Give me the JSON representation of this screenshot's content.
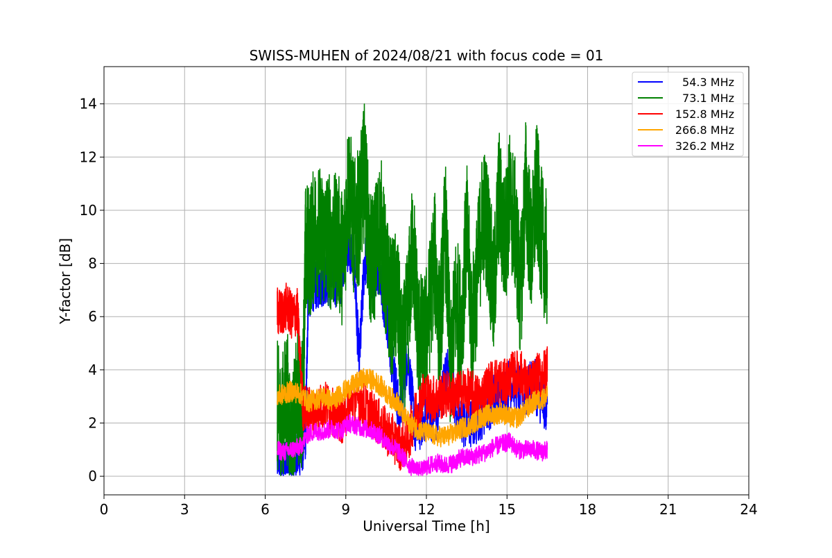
{
  "chart_data": {
    "type": "line",
    "title": "SWISS-MUHEN of 2024/08/21 with focus code = 01",
    "xlabel": "Universal Time [h]",
    "ylabel": "Y-factor [dB]",
    "xlim": [
      0,
      24
    ],
    "ylim": [
      -0.7,
      15.4
    ],
    "xticks": [
      0,
      3,
      6,
      9,
      12,
      15,
      18,
      21,
      24
    ],
    "yticks": [
      0,
      2,
      4,
      6,
      8,
      10,
      12,
      14
    ],
    "grid": true,
    "legend_position": "top-right",
    "series": [
      {
        "name": "54.3 MHz",
        "color": "#0000ff",
        "x": [
          6.45,
          6.7,
          6.9,
          7.1,
          7.3,
          7.5,
          7.6,
          7.8,
          8.0,
          8.2,
          8.5,
          8.8,
          9.0,
          9.3,
          9.5,
          9.7,
          9.9,
          10.2,
          10.5,
          10.8,
          11.0,
          11.3,
          11.6,
          12.0,
          12.4,
          12.8,
          13.2,
          13.6,
          14.0,
          14.4,
          14.8,
          15.2,
          15.6,
          16.0,
          16.3,
          16.5
        ],
        "y": [
          0.5,
          0.4,
          0.3,
          0.6,
          0.9,
          1.5,
          6.8,
          7.2,
          7.3,
          7.4,
          7.3,
          7.4,
          8.8,
          8.1,
          4.2,
          8.2,
          7.6,
          7.8,
          6.2,
          3.8,
          2.2,
          4.6,
          1.6,
          2.4,
          2.2,
          4.1,
          2.1,
          1.9,
          2.3,
          2.8,
          3.2,
          3.6,
          3.0,
          3.5,
          2.8,
          2.7
        ]
      },
      {
        "name": "73.1 MHz",
        "color": "#008000",
        "x": [
          6.45,
          6.6,
          6.8,
          7.0,
          7.2,
          7.4,
          7.5,
          7.7,
          7.9,
          8.1,
          8.3,
          8.5,
          8.7,
          8.9,
          9.1,
          9.3,
          9.5,
          9.7,
          9.9,
          10.1,
          10.3,
          10.5,
          10.7,
          10.9,
          11.1,
          11.3,
          11.5,
          11.7,
          11.9,
          12.1,
          12.3,
          12.5,
          12.7,
          12.9,
          13.1,
          13.3,
          13.5,
          13.7,
          13.9,
          14.1,
          14.3,
          14.5,
          14.7,
          14.9,
          15.1,
          15.3,
          15.5,
          15.7,
          15.9,
          16.1,
          16.3,
          16.5
        ],
        "y": [
          2.6,
          1.7,
          3.2,
          1.1,
          3.0,
          2.6,
          8.4,
          8.6,
          9.4,
          8.9,
          9.0,
          8.7,
          8.9,
          8.1,
          11.1,
          9.3,
          9.8,
          11.6,
          7.9,
          8.5,
          9.6,
          7.4,
          6.3,
          6.8,
          4.2,
          6.0,
          8.8,
          5.4,
          4.8,
          6.2,
          8.3,
          5.3,
          9.6,
          3.8,
          6.7,
          5.5,
          9.3,
          5.5,
          7.6,
          10.0,
          9.2,
          6.6,
          10.6,
          8.7,
          10.4,
          9.4,
          6.8,
          11.0,
          8.3,
          10.8,
          8.9,
          8.0
        ]
      },
      {
        "name": "152.8 MHz",
        "color": "#ff0000",
        "x": [
          6.45,
          6.6,
          6.8,
          7.0,
          7.2,
          7.4,
          7.6,
          7.8,
          8.0,
          8.3,
          8.6,
          8.9,
          9.2,
          9.5,
          9.8,
          10.1,
          10.4,
          10.7,
          11.0,
          11.3,
          11.6,
          11.9,
          12.2,
          12.5,
          12.8,
          13.1,
          13.4,
          13.7,
          14.0,
          14.3,
          14.6,
          14.9,
          15.2,
          15.5,
          15.8,
          16.1,
          16.4,
          16.5
        ],
        "y": [
          6.2,
          6.1,
          6.4,
          6.0,
          6.2,
          2.6,
          2.5,
          2.4,
          2.6,
          2.7,
          2.3,
          2.1,
          2.8,
          2.9,
          2.5,
          2.2,
          1.8,
          1.5,
          1.1,
          1.3,
          2.4,
          3.1,
          2.9,
          3.0,
          3.1,
          3.0,
          3.2,
          3.1,
          2.9,
          3.4,
          3.6,
          3.5,
          3.8,
          3.9,
          3.3,
          3.7,
          3.9,
          4.0
        ]
      },
      {
        "name": "266.8 MHz",
        "color": "#ffa500",
        "x": [
          6.45,
          6.7,
          7.0,
          7.3,
          7.6,
          7.9,
          8.2,
          8.5,
          8.8,
          9.1,
          9.4,
          9.7,
          10.0,
          10.3,
          10.6,
          10.9,
          11.2,
          11.5,
          11.8,
          12.1,
          12.4,
          12.7,
          13.0,
          13.3,
          13.6,
          13.9,
          14.2,
          14.5,
          14.8,
          15.1,
          15.4,
          15.7,
          16.0,
          16.3,
          16.5
        ],
        "y": [
          3.0,
          3.1,
          3.2,
          3.1,
          2.8,
          2.9,
          3.0,
          2.8,
          3.1,
          3.3,
          3.5,
          3.7,
          3.6,
          3.4,
          3.0,
          2.8,
          2.2,
          1.9,
          1.7,
          1.6,
          1.5,
          1.5,
          1.6,
          1.8,
          1.9,
          2.1,
          2.3,
          2.3,
          2.4,
          2.2,
          2.2,
          2.5,
          2.8,
          2.9,
          3.0
        ]
      },
      {
        "name": "326.2 MHz",
        "color": "#ff00ff",
        "x": [
          6.45,
          6.7,
          7.0,
          7.3,
          7.6,
          7.9,
          8.2,
          8.5,
          8.8,
          9.1,
          9.4,
          9.7,
          10.0,
          10.3,
          10.6,
          10.9,
          11.2,
          11.5,
          11.8,
          12.1,
          12.4,
          12.7,
          13.0,
          13.3,
          13.6,
          13.9,
          14.2,
          14.5,
          14.8,
          15.1,
          15.4,
          15.7,
          16.0,
          16.3,
          16.5
        ],
        "y": [
          1.0,
          0.9,
          1.0,
          1.1,
          1.6,
          1.7,
          1.7,
          1.8,
          1.7,
          2.0,
          1.9,
          1.8,
          1.7,
          1.5,
          1.2,
          1.0,
          0.6,
          0.3,
          0.2,
          0.4,
          0.5,
          0.4,
          0.5,
          0.7,
          0.7,
          0.8,
          0.9,
          1.1,
          1.2,
          1.3,
          1.0,
          1.0,
          1.0,
          0.9,
          1.0
        ]
      }
    ]
  }
}
